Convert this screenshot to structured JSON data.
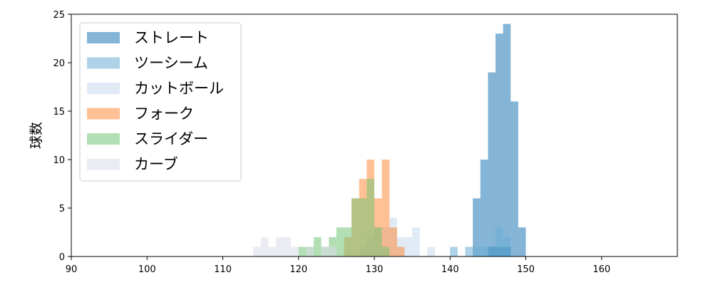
{
  "chart_data": {
    "type": "histogram",
    "ylabel": "球数",
    "xlabel": "",
    "xlim": [
      90,
      170
    ],
    "ylim": [
      0,
      25
    ],
    "xticks": [
      90,
      100,
      110,
      120,
      130,
      140,
      150,
      160
    ],
    "yticks": [
      0,
      5,
      10,
      15,
      20,
      25
    ],
    "bin_width": 1,
    "legend_position": "upper-left",
    "grid": false,
    "series": [
      {
        "name": "ストレート",
        "color": "#1f77b4",
        "bins": [
          [
            145,
            1
          ],
          [
            146,
            1
          ],
          [
            147,
            1
          ],
          [
            143,
            6
          ],
          [
            144,
            10
          ],
          [
            145,
            19
          ],
          [
            146,
            23
          ],
          [
            147,
            24
          ],
          [
            148,
            16
          ],
          [
            149,
            3
          ]
        ],
        "note_bins": "x = left edge of each 1 km/h bin, second value = count"
      },
      {
        "name": "ツーシーム",
        "color": "#6baed6",
        "bins": [
          [
            140,
            1
          ],
          [
            142,
            1
          ],
          [
            143,
            1
          ],
          [
            144,
            1
          ],
          [
            145,
            1
          ],
          [
            146,
            3
          ],
          [
            147,
            2
          ]
        ]
      },
      {
        "name": "カットボール",
        "color": "#c6dbef",
        "bins": [
          [
            128,
            1
          ],
          [
            129,
            2
          ],
          [
            130,
            3
          ],
          [
            131,
            3
          ],
          [
            132,
            4
          ],
          [
            133,
            2
          ],
          [
            134,
            2
          ],
          [
            135,
            3
          ],
          [
            137,
            1
          ]
        ]
      },
      {
        "name": "フォーク",
        "color": "#fd8d3c",
        "bins": [
          [
            126,
            2
          ],
          [
            127,
            6
          ],
          [
            128,
            8
          ],
          [
            129,
            10
          ],
          [
            130,
            6
          ],
          [
            131,
            10
          ],
          [
            132,
            3
          ],
          [
            133,
            1
          ]
        ]
      },
      {
        "name": "スライダー",
        "color": "#74c476",
        "bins": [
          [
            120,
            1
          ],
          [
            121,
            1
          ],
          [
            122,
            2
          ],
          [
            123,
            1
          ],
          [
            124,
            2
          ],
          [
            125,
            3
          ],
          [
            126,
            3
          ],
          [
            127,
            6
          ],
          [
            128,
            6
          ],
          [
            129,
            8
          ],
          [
            130,
            3
          ],
          [
            131,
            1
          ]
        ]
      },
      {
        "name": "カーブ",
        "color": "#dadaeb",
        "bins": [
          [
            114,
            1
          ],
          [
            115,
            2
          ],
          [
            116,
            1
          ],
          [
            117,
            2
          ],
          [
            118,
            2
          ],
          [
            119,
            1
          ],
          [
            121,
            1
          ],
          [
            123,
            1
          ],
          [
            124,
            1
          ]
        ]
      }
    ]
  }
}
